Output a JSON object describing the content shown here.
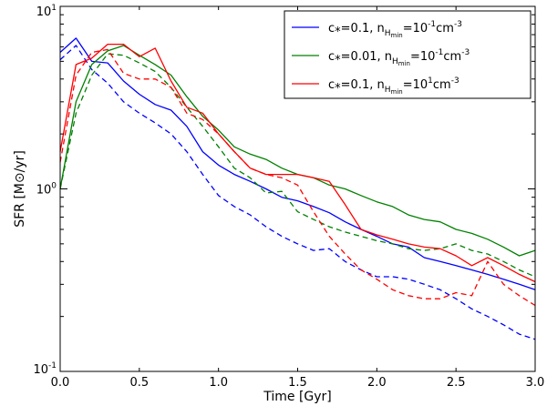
{
  "chart_data": {
    "type": "line",
    "xlabel": "Time [Gyr]",
    "ylabel": "SFR [M⊙/yr]",
    "yscale": "log",
    "xlim": [
      0.0,
      3.0
    ],
    "ylim": [
      0.1,
      10
    ],
    "xticks": [
      "0.0",
      "0.5",
      "1.0",
      "1.5",
      "2.0",
      "2.5",
      "3.0"
    ],
    "yticks": [
      {
        "base": "10",
        "exp": "-1"
      },
      {
        "base": "10",
        "exp": "0"
      },
      {
        "base": "10",
        "exp": "1"
      }
    ],
    "legend_location": "top-right",
    "legend": [
      {
        "star": "c",
        "star_sub": "*",
        "c_value": "=0.1, n",
        "n_sub": "H",
        "n_subsub": "min",
        "eq": "=10",
        "exp": "-1",
        "unit": "cm",
        "unit_exp": "-3"
      },
      {
        "star": "c",
        "star_sub": "*",
        "c_value": "=0.01, n",
        "n_sub": "H",
        "n_subsub": "min",
        "eq": "=10",
        "exp": "-1",
        "unit": "cm",
        "unit_exp": "-3"
      },
      {
        "star": "c",
        "star_sub": "*",
        "c_value": "=0.1, n",
        "n_sub": "H",
        "n_subsub": "min",
        "eq": "=10",
        "exp": "1",
        "unit": "cm",
        "unit_exp": "-3"
      }
    ],
    "series": [
      {
        "name": "c*=0.1, nHmin=10^-1 cm^-3 (solid)",
        "color": "#0000ff",
        "style": "solid",
        "x": [
          0,
          0.1,
          0.2,
          0.3,
          0.4,
          0.5,
          0.6,
          0.7,
          0.8,
          0.9,
          1.0,
          1.1,
          1.2,
          1.3,
          1.4,
          1.5,
          1.6,
          1.7,
          1.8,
          1.9,
          2.0,
          2.1,
          2.2,
          2.3,
          2.4,
          2.5,
          2.6,
          2.7,
          2.8,
          2.9,
          3.0
        ],
        "y": [
          5.6,
          6.7,
          5.0,
          4.9,
          3.9,
          3.3,
          2.9,
          2.7,
          2.2,
          1.6,
          1.35,
          1.2,
          1.1,
          1.0,
          0.9,
          0.86,
          0.8,
          0.74,
          0.66,
          0.6,
          0.55,
          0.5,
          0.48,
          0.42,
          0.4,
          0.38,
          0.36,
          0.34,
          0.32,
          0.3,
          0.28
        ]
      },
      {
        "name": "c*=0.1, nHmin=10^-1 cm^-3 (dashed)",
        "color": "#0000ff",
        "style": "dashed",
        "x": [
          0,
          0.1,
          0.2,
          0.3,
          0.4,
          0.5,
          0.6,
          0.7,
          0.8,
          0.9,
          1.0,
          1.1,
          1.2,
          1.3,
          1.4,
          1.5,
          1.6,
          1.7,
          1.8,
          1.9,
          2.0,
          2.1,
          2.2,
          2.3,
          2.4,
          2.5,
          2.6,
          2.7,
          2.8,
          2.9,
          3.0
        ],
        "y": [
          5.1,
          6.1,
          4.5,
          3.8,
          3.0,
          2.6,
          2.3,
          2.0,
          1.6,
          1.2,
          0.92,
          0.8,
          0.72,
          0.62,
          0.55,
          0.5,
          0.46,
          0.47,
          0.4,
          0.36,
          0.33,
          0.33,
          0.32,
          0.3,
          0.28,
          0.25,
          0.22,
          0.2,
          0.18,
          0.16,
          0.15
        ]
      },
      {
        "name": "c*=0.01, nHmin=10^-1 cm^-3 (solid)",
        "color": "#008000",
        "style": "solid",
        "x": [
          0,
          0.1,
          0.2,
          0.3,
          0.4,
          0.5,
          0.6,
          0.7,
          0.8,
          0.9,
          1.0,
          1.1,
          1.2,
          1.3,
          1.4,
          1.5,
          1.6,
          1.7,
          1.8,
          1.9,
          2.0,
          2.1,
          2.2,
          2.3,
          2.4,
          2.5,
          2.6,
          2.7,
          2.8,
          2.9,
          3.0
        ],
        "y": [
          1.0,
          3.0,
          4.8,
          5.7,
          6.1,
          5.4,
          4.8,
          4.2,
          3.2,
          2.5,
          2.1,
          1.7,
          1.55,
          1.45,
          1.3,
          1.2,
          1.15,
          1.05,
          1.0,
          0.92,
          0.85,
          0.8,
          0.72,
          0.68,
          0.66,
          0.6,
          0.57,
          0.53,
          0.48,
          0.43,
          0.46
        ]
      },
      {
        "name": "c*=0.01, nHmin=10^-1 cm^-3 (dashed)",
        "color": "#008000",
        "style": "dashed",
        "x": [
          0,
          0.1,
          0.2,
          0.3,
          0.4,
          0.5,
          0.6,
          0.7,
          0.8,
          0.9,
          1.0,
          1.1,
          1.2,
          1.3,
          1.4,
          1.5,
          1.6,
          1.7,
          1.8,
          1.9,
          2.0,
          2.1,
          2.2,
          2.3,
          2.4,
          2.5,
          2.6,
          2.7,
          2.8,
          2.9,
          3.0
        ],
        "y": [
          1.0,
          2.6,
          4.2,
          5.5,
          5.4,
          4.9,
          4.4,
          3.6,
          2.8,
          2.2,
          1.7,
          1.3,
          1.15,
          0.95,
          0.97,
          0.75,
          0.68,
          0.62,
          0.58,
          0.55,
          0.52,
          0.5,
          0.47,
          0.46,
          0.47,
          0.5,
          0.46,
          0.44,
          0.4,
          0.36,
          0.33
        ]
      },
      {
        "name": "c*=0.1, nHmin=10^1 cm^-3 (solid)",
        "color": "#ff0000",
        "style": "solid",
        "x": [
          0,
          0.1,
          0.2,
          0.3,
          0.4,
          0.5,
          0.6,
          0.7,
          0.8,
          0.9,
          1.0,
          1.1,
          1.2,
          1.3,
          1.4,
          1.5,
          1.6,
          1.7,
          1.8,
          1.9,
          2.0,
          2.1,
          2.2,
          2.3,
          2.4,
          2.5,
          2.6,
          2.7,
          2.8,
          2.9,
          3.0
        ],
        "y": [
          1.6,
          4.8,
          5.2,
          6.2,
          6.2,
          5.3,
          5.9,
          3.9,
          2.8,
          2.6,
          2.0,
          1.6,
          1.3,
          1.2,
          1.2,
          1.2,
          1.15,
          1.1,
          0.82,
          0.6,
          0.56,
          0.53,
          0.5,
          0.48,
          0.47,
          0.43,
          0.38,
          0.42,
          0.38,
          0.34,
          0.31
        ]
      },
      {
        "name": "c*=0.1, nHmin=10^1 cm^-3 (dashed)",
        "color": "#ff0000",
        "style": "dashed",
        "x": [
          0,
          0.1,
          0.2,
          0.3,
          0.4,
          0.5,
          0.6,
          0.7,
          0.8,
          0.9,
          1.0,
          1.1,
          1.2,
          1.3,
          1.4,
          1.5,
          1.6,
          1.7,
          1.8,
          1.9,
          2.0,
          2.1,
          2.2,
          2.3,
          2.4,
          2.5,
          2.6,
          2.7,
          2.8,
          2.9,
          3.0
        ],
        "y": [
          1.4,
          4.2,
          5.6,
          5.8,
          4.3,
          4.0,
          4.0,
          3.6,
          2.6,
          2.4,
          2.0,
          1.6,
          1.3,
          1.2,
          1.15,
          1.05,
          0.75,
          0.55,
          0.44,
          0.36,
          0.32,
          0.28,
          0.26,
          0.25,
          0.25,
          0.27,
          0.26,
          0.4,
          0.3,
          0.26,
          0.23
        ]
      }
    ]
  }
}
